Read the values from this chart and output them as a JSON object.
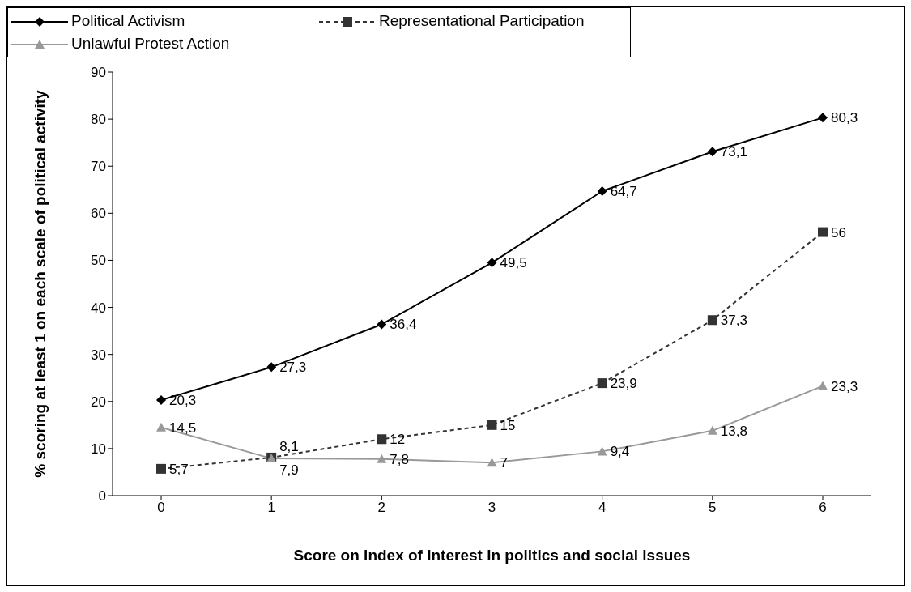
{
  "chart_data": {
    "type": "line",
    "xlabel": "Score on index of Interest in politics and social issues",
    "ylabel": "% scoring at least 1 on each scale of political activity",
    "categories": [
      "0",
      "1",
      "2",
      "3",
      "4",
      "5",
      "6"
    ],
    "series": [
      {
        "name": "Political Activism",
        "color": "#000000",
        "marker": "diamond",
        "line_style": "solid",
        "values": [
          20.3,
          27.3,
          36.4,
          49.5,
          64.7,
          73.1,
          80.3
        ],
        "value_labels": [
          "20,3",
          "27,3",
          "36,4",
          "49,5",
          "64,7",
          "73,1",
          "80,3"
        ]
      },
      {
        "name": "Representational Participation",
        "color": "#333333",
        "marker": "square",
        "line_style": "dashed",
        "values": [
          5.7,
          8.1,
          12,
          15,
          23.9,
          37.3,
          56
        ],
        "value_labels": [
          "5,7",
          "8,1",
          "12",
          "15",
          "23,9",
          "37,3",
          "56"
        ]
      },
      {
        "name": "Unlawful Protest Action",
        "color": "#999999",
        "marker": "triangle",
        "line_style": "solid",
        "values": [
          14.5,
          7.9,
          7.8,
          7,
          9.4,
          13.8,
          23.3
        ],
        "value_labels": [
          "14,5",
          "7,9",
          "7,8",
          "7",
          "9,4",
          "13,8",
          "23,3"
        ]
      }
    ],
    "ylim": [
      0,
      90
    ],
    "yticks": [
      0,
      10,
      20,
      30,
      40,
      50,
      60,
      70,
      80,
      90
    ],
    "grid": false,
    "legend": "top left"
  }
}
